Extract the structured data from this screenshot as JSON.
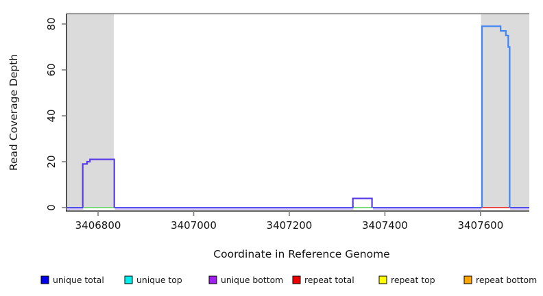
{
  "figure": {
    "background": "#ffffff",
    "plot_border_top_color": "#9a9a9a",
    "axis_color": "#2b2b2b",
    "tick_color": "#7d7d7d"
  },
  "chart_data": {
    "type": "line",
    "title": "",
    "xlabel": "Coordinate in Reference Genome",
    "ylabel": "Read Coverage Depth",
    "grid": false,
    "legend_position": "bottom",
    "xlim": [
      3406734,
      3407702
    ],
    "ylim": [
      0,
      80
    ],
    "top_border_value": 84.5,
    "x_ticks": [
      {
        "value": 3406800,
        "label": "3406800"
      },
      {
        "value": 3407000,
        "label": "3407000"
      },
      {
        "value": 3407200,
        "label": "3407200"
      },
      {
        "value": 3407400,
        "label": "3407400"
      },
      {
        "value": 3407600,
        "label": "3407600"
      }
    ],
    "y_ticks": [
      {
        "value": 0,
        "label": "0"
      },
      {
        "value": 20,
        "label": "20"
      },
      {
        "value": 40,
        "label": "40"
      },
      {
        "value": 60,
        "label": "60"
      },
      {
        "value": 80,
        "label": "80"
      }
    ],
    "shaded_regions": [
      {
        "name": "repeat-region-left",
        "x0": 3406734,
        "x1": 3406833,
        "color": "#dbdbdb"
      },
      {
        "name": "repeat-region-right",
        "x0": 3407601,
        "x1": 3407702,
        "color": "#dbdbdb"
      }
    ],
    "series": [
      {
        "name": "unique total",
        "color": "#0000ee",
        "step_points": [
          [
            3406734,
            0
          ],
          [
            3406768,
            19
          ],
          [
            3406777,
            20
          ],
          [
            3406783,
            21
          ],
          [
            3406834,
            0
          ],
          [
            3407333,
            4
          ],
          [
            3407373,
            0
          ],
          [
            3407603,
            79
          ],
          [
            3407642,
            77
          ],
          [
            3407653,
            75
          ],
          [
            3407658,
            70
          ],
          [
            3407661,
            0
          ]
        ]
      },
      {
        "name": "unique top",
        "color": "#00eeee",
        "step_points": [
          [
            3406734,
            0
          ]
        ]
      },
      {
        "name": "unique bottom",
        "color": "#a020f0",
        "step_points": [
          [
            3406734,
            0
          ],
          [
            3406768,
            19
          ],
          [
            3406777,
            20
          ],
          [
            3406783,
            21
          ],
          [
            3406834,
            0
          ],
          [
            3407333,
            4
          ],
          [
            3407373,
            0
          ]
        ]
      },
      {
        "name": "repeat total",
        "color": "#ee0000",
        "step_points": [
          [
            3406734,
            0
          ]
        ]
      },
      {
        "name": "repeat top",
        "color": "#ffff00",
        "step_points": [
          [
            3406734,
            0
          ]
        ]
      },
      {
        "name": "repeat bottom",
        "color": "#ffa500",
        "step_points": [
          [
            3406734,
            0
          ]
        ]
      }
    ],
    "render_paths": [
      {
        "name": "overlap-green-zero-left",
        "color": "#7cd87c",
        "width": 2,
        "dy": 0,
        "points": [
          [
            3406770,
            0
          ],
          [
            3406836,
            0
          ]
        ]
      },
      {
        "name": "overlap-green-zero-mid",
        "color": "#7cd87c",
        "width": 2,
        "dy": 0,
        "points": [
          [
            3407333,
            0
          ],
          [
            3407377,
            0
          ]
        ]
      },
      {
        "name": "repeat-total-zero-right",
        "color": "#ea4848",
        "width": 2,
        "dy": 0,
        "points": [
          [
            3407601,
            0
          ],
          [
            3407663,
            0
          ]
        ]
      },
      {
        "name": "unique-bottom-zero-tint-1",
        "color": "#b7a3f0",
        "width": 1.6,
        "dy": 2,
        "points": [
          [
            3406734,
            0
          ],
          [
            3406769,
            0
          ]
        ]
      },
      {
        "name": "unique-bottom-zero-tint-2",
        "color": "#b7a3f0",
        "width": 1.6,
        "dy": 2,
        "points": [
          [
            3406835,
            0
          ],
          [
            3407334,
            0
          ]
        ]
      },
      {
        "name": "unique-bottom-zero-tint-3",
        "color": "#b7a3f0",
        "width": 1.6,
        "dy": 2,
        "points": [
          [
            3407375,
            0
          ],
          [
            3407602,
            0
          ]
        ]
      },
      {
        "name": "unique-bottom-zero-tint-4",
        "color": "#b7a3f0",
        "width": 1.6,
        "dy": 2,
        "points": [
          [
            3407662,
            0
          ],
          [
            3407702,
            0
          ]
        ]
      },
      {
        "name": "unique-total-zero-1",
        "color": "#3b3bef",
        "width": 1.8,
        "dy": 0,
        "points": [
          [
            3406734,
            0
          ],
          [
            3406769,
            0
          ]
        ]
      },
      {
        "name": "unique-total-zero-2",
        "color": "#3b3bef",
        "width": 1.8,
        "dy": 0,
        "points": [
          [
            3406835,
            0
          ],
          [
            3407334,
            0
          ]
        ]
      },
      {
        "name": "unique-total-zero-3",
        "color": "#3b3bef",
        "width": 1.8,
        "dy": 0,
        "points": [
          [
            3407375,
            0
          ],
          [
            3407602,
            0
          ]
        ]
      },
      {
        "name": "unique-total-zero-4",
        "color": "#3b3bef",
        "width": 1.8,
        "dy": 0,
        "points": [
          [
            3407662,
            0
          ],
          [
            3407702,
            0
          ]
        ]
      },
      {
        "name": "unique-left-peak",
        "color": "#5a3be8",
        "width": 2.2,
        "dy": 0,
        "points": [
          [
            3406768,
            0
          ],
          [
            3406768,
            19
          ],
          [
            3406777,
            19
          ],
          [
            3406777,
            20
          ],
          [
            3406783,
            20
          ],
          [
            3406783,
            21
          ],
          [
            3406834,
            21
          ],
          [
            3406834,
            0
          ]
        ]
      },
      {
        "name": "unique-mid-bump",
        "color": "#5a3be8",
        "width": 2.2,
        "dy": 0,
        "points": [
          [
            3407333,
            0
          ],
          [
            3407333,
            4
          ],
          [
            3407373,
            4
          ],
          [
            3407373,
            0
          ]
        ]
      },
      {
        "name": "unique-right-peak",
        "color": "#4285f4",
        "width": 2.2,
        "dy": 0,
        "points": [
          [
            3407603,
            0
          ],
          [
            3407603,
            79
          ],
          [
            3407642,
            79
          ],
          [
            3407642,
            77
          ],
          [
            3407653,
            77
          ],
          [
            3407653,
            75
          ],
          [
            3407658,
            75
          ],
          [
            3407658,
            70
          ],
          [
            3407661,
            70
          ],
          [
            3407661,
            0
          ]
        ]
      }
    ],
    "legend": [
      {
        "label": "unique total",
        "color": "#0000ee"
      },
      {
        "label": "unique top",
        "color": "#00eeee"
      },
      {
        "label": "unique bottom",
        "color": "#a020f0"
      },
      {
        "label": "repeat total",
        "color": "#ee0000"
      },
      {
        "label": "repeat top",
        "color": "#ffff00"
      },
      {
        "label": "repeat bottom",
        "color": "#ffa500"
      }
    ]
  }
}
